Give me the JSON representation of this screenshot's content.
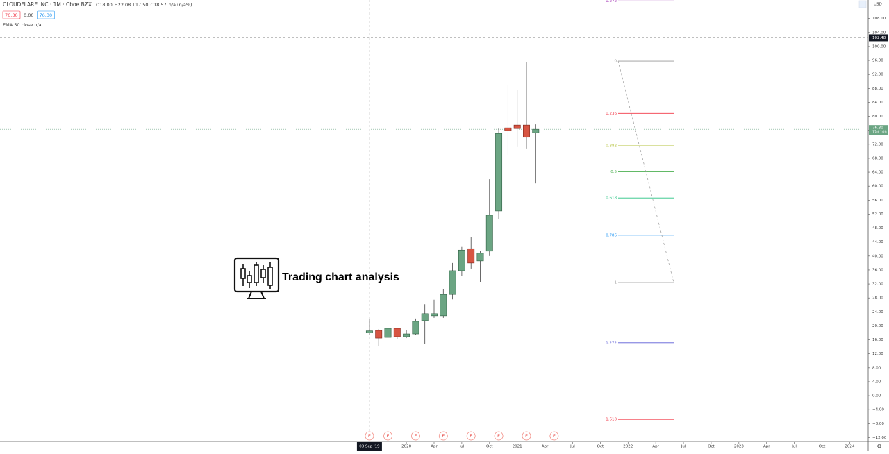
{
  "chart_data": {
    "type": "candlestick",
    "title": "CLOUDFLARE INC · 1M · Cboe BZX",
    "ohlc_legend": [
      "O18.00",
      "H22.08",
      "L17.50",
      "C18.57",
      "n/a (n/a%)"
    ],
    "buttons": [
      "76.30",
      "0.00",
      "76.30"
    ],
    "indicator": "EMA 50 close  n/a",
    "watermark": "Trading chart analysis",
    "currency": "USD",
    "x": [
      "2019-09",
      "2019-10",
      "2019-11",
      "2019-12",
      "2020-01",
      "2020-02",
      "2020-03",
      "2020-04",
      "2020-05",
      "2020-06",
      "2020-07",
      "2020-08",
      "2020-09",
      "2020-10",
      "2020-11",
      "2020-12",
      "2021-01",
      "2021-02",
      "2021-03"
    ],
    "open": [
      18.0,
      18.7,
      16.7,
      19.3,
      16.9,
      17.7,
      21.5,
      22.9,
      22.9,
      29.0,
      35.8,
      42.1,
      38.6,
      41.4,
      52.9,
      76.7,
      77.5,
      77.5,
      75.3
    ],
    "high": [
      22.08,
      19.1,
      19.9,
      19.5,
      18.7,
      22.1,
      26.2,
      27.5,
      30.6,
      38.0,
      42.6,
      45.5,
      41.5,
      62.0,
      76.7,
      89.1,
      87.5,
      95.6,
      77.7
    ],
    "low": [
      17.5,
      14.3,
      15.3,
      16.3,
      16.5,
      17.5,
      14.9,
      22.3,
      22.3,
      27.6,
      34.2,
      36.4,
      32.6,
      40.0,
      50.7,
      68.8,
      71.2,
      70.8,
      60.8
    ],
    "close": [
      18.57,
      16.5,
      19.3,
      16.9,
      17.7,
      21.3,
      23.5,
      23.5,
      29.0,
      35.8,
      41.7,
      38.0,
      40.8,
      51.7,
      75.1,
      75.9,
      76.5,
      74.0,
      76.3
    ],
    "up_color": "#6ba583",
    "down_color": "#d75442",
    "xlim": [
      "2016-05",
      "2024-03"
    ],
    "xticks": [
      {
        "value": "2020-01",
        "label": "2020"
      },
      {
        "value": "2020-04",
        "label": "Apr"
      },
      {
        "value": "2020-07",
        "label": "Jul"
      },
      {
        "value": "2020-10",
        "label": "Oct"
      },
      {
        "value": "2021-01",
        "label": "2021"
      },
      {
        "value": "2021-04",
        "label": "Apr"
      },
      {
        "value": "2021-07",
        "label": "Jul"
      },
      {
        "value": "2021-10",
        "label": "Oct"
      },
      {
        "value": "2022-01",
        "label": "2022"
      },
      {
        "value": "2022-04",
        "label": "Apr"
      },
      {
        "value": "2022-07",
        "label": "Jul"
      },
      {
        "value": "2022-10",
        "label": "Oct"
      },
      {
        "value": "2023-01",
        "label": "2023"
      },
      {
        "value": "2023-04",
        "label": "Apr"
      },
      {
        "value": "2023-07",
        "label": "Jul"
      },
      {
        "value": "2023-10",
        "label": "Oct"
      },
      {
        "value": "2024-01",
        "label": "2024"
      }
    ],
    "ylim": [
      -13.1,
      113.3
    ],
    "yticks": [
      {
        "value": 108,
        "label": "108.00"
      },
      {
        "value": 104,
        "label": "104.00"
      },
      {
        "value": 100,
        "label": "100.00"
      },
      {
        "value": 96,
        "label": "96.00"
      },
      {
        "value": 92,
        "label": "92.00"
      },
      {
        "value": 88,
        "label": "88.00"
      },
      {
        "value": 84,
        "label": "84.00"
      },
      {
        "value": 80,
        "label": "80.00"
      },
      {
        "value": 76,
        "label": "76.00"
      },
      {
        "value": 72,
        "label": "72.00"
      },
      {
        "value": 68,
        "label": "68.00"
      },
      {
        "value": 64,
        "label": "64.00"
      },
      {
        "value": 60,
        "label": "60.00"
      },
      {
        "value": 56,
        "label": "56.00"
      },
      {
        "value": 52,
        "label": "52.00"
      },
      {
        "value": 48,
        "label": "48.00"
      },
      {
        "value": 44,
        "label": "44.00"
      },
      {
        "value": 40,
        "label": "40.00"
      },
      {
        "value": 36,
        "label": "36.00"
      },
      {
        "value": 32,
        "label": "32.00"
      },
      {
        "value": 28,
        "label": "28.00"
      },
      {
        "value": 24,
        "label": "24.00"
      },
      {
        "value": 20,
        "label": "20.00"
      },
      {
        "value": 16,
        "label": "16.00"
      },
      {
        "value": 12,
        "label": "12.00"
      },
      {
        "value": 8,
        "label": "8.00"
      },
      {
        "value": 4,
        "label": "4.00"
      },
      {
        "value": 0,
        "label": "0.00"
      },
      {
        "value": -4,
        "label": "−4.00"
      },
      {
        "value": -8,
        "label": "−8.00"
      },
      {
        "value": -12,
        "label": "−12.00"
      }
    ],
    "crosshair": {
      "y": {
        "value": 102.48,
        "label": "102.48"
      },
      "x": {
        "value": "2019-09",
        "label": "03 Sep '19"
      }
    },
    "last_price": {
      "value": 76.3,
      "label": "76.30",
      "countdown": "17d 10h"
    },
    "earnings": {
      "label": "E",
      "x": [
        "2019-09",
        "2019-11",
        "2020-02",
        "2020-05",
        "2020-08",
        "2020-11",
        "2021-02",
        "2021-05"
      ]
    },
    "fib": {
      "high": 95.8,
      "low": 32.4,
      "levels": [
        -0.272,
        0,
        0.236,
        0.382,
        0.5,
        0.618,
        0.786,
        1,
        1.272,
        1.618
      ],
      "colors": [
        "#9c27b0",
        "#999999",
        "#f23645",
        "#b5c33d",
        "#4caf50",
        "#26c281",
        "#2196f3",
        "#999999",
        "#5b5bd6",
        "#f23645"
      ]
    }
  }
}
